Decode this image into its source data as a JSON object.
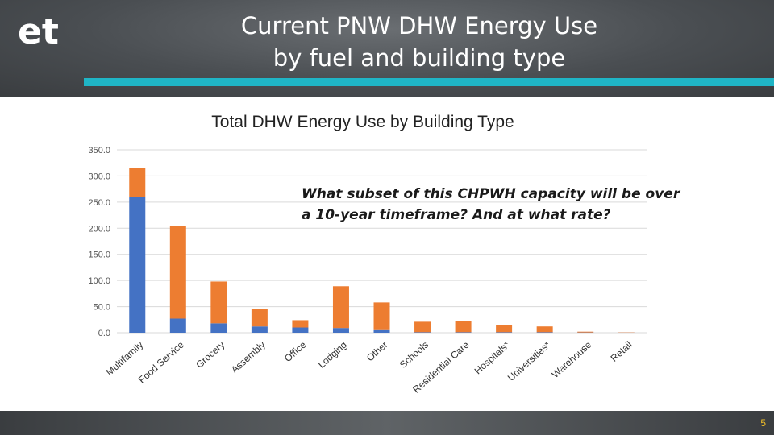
{
  "slide": {
    "title_line1": "Current PNW DHW Energy Use",
    "title_line2": "by fuel and building type",
    "logo_text": "et",
    "callout_line1": "What subset of this CHPWH capacity will be over",
    "callout_line2": "a 10-year timeframe? And at what rate?",
    "page_number": "5",
    "colors": {
      "accent": "#1fb5c6",
      "header_bg": "#4a4e52",
      "series_blue": "#4472c4",
      "series_orange": "#ed7d31",
      "page_number": "#f2c029"
    }
  },
  "chart_data": {
    "type": "bar",
    "stacked": true,
    "title": "Total DHW Energy Use by Building Type",
    "xlabel": "",
    "ylabel": "",
    "ylim": [
      0,
      350
    ],
    "ytick_labels": [
      "0.0",
      "50.0",
      "100.0",
      "150.0",
      "200.0",
      "250.0",
      "300.0",
      "350.0"
    ],
    "grid": true,
    "legend": "none",
    "categories": [
      "Multifamily",
      "Food Service",
      "Grocery",
      "Assembly",
      "Office",
      "Lodging",
      "Other",
      "Schools",
      "Residential Care",
      "Hospitals*",
      "Universities*",
      "Warehouse",
      "Retail"
    ],
    "series": [
      {
        "color": "#4472c4",
        "values": [
          260,
          27,
          18,
          12,
          10,
          9,
          5,
          1,
          1,
          1,
          1,
          0.5,
          0.3
        ]
      },
      {
        "color": "#ed7d31",
        "values": [
          55,
          178,
          80,
          34,
          14,
          80,
          53,
          20,
          22,
          13,
          11,
          1.5,
          0.5
        ]
      }
    ]
  }
}
